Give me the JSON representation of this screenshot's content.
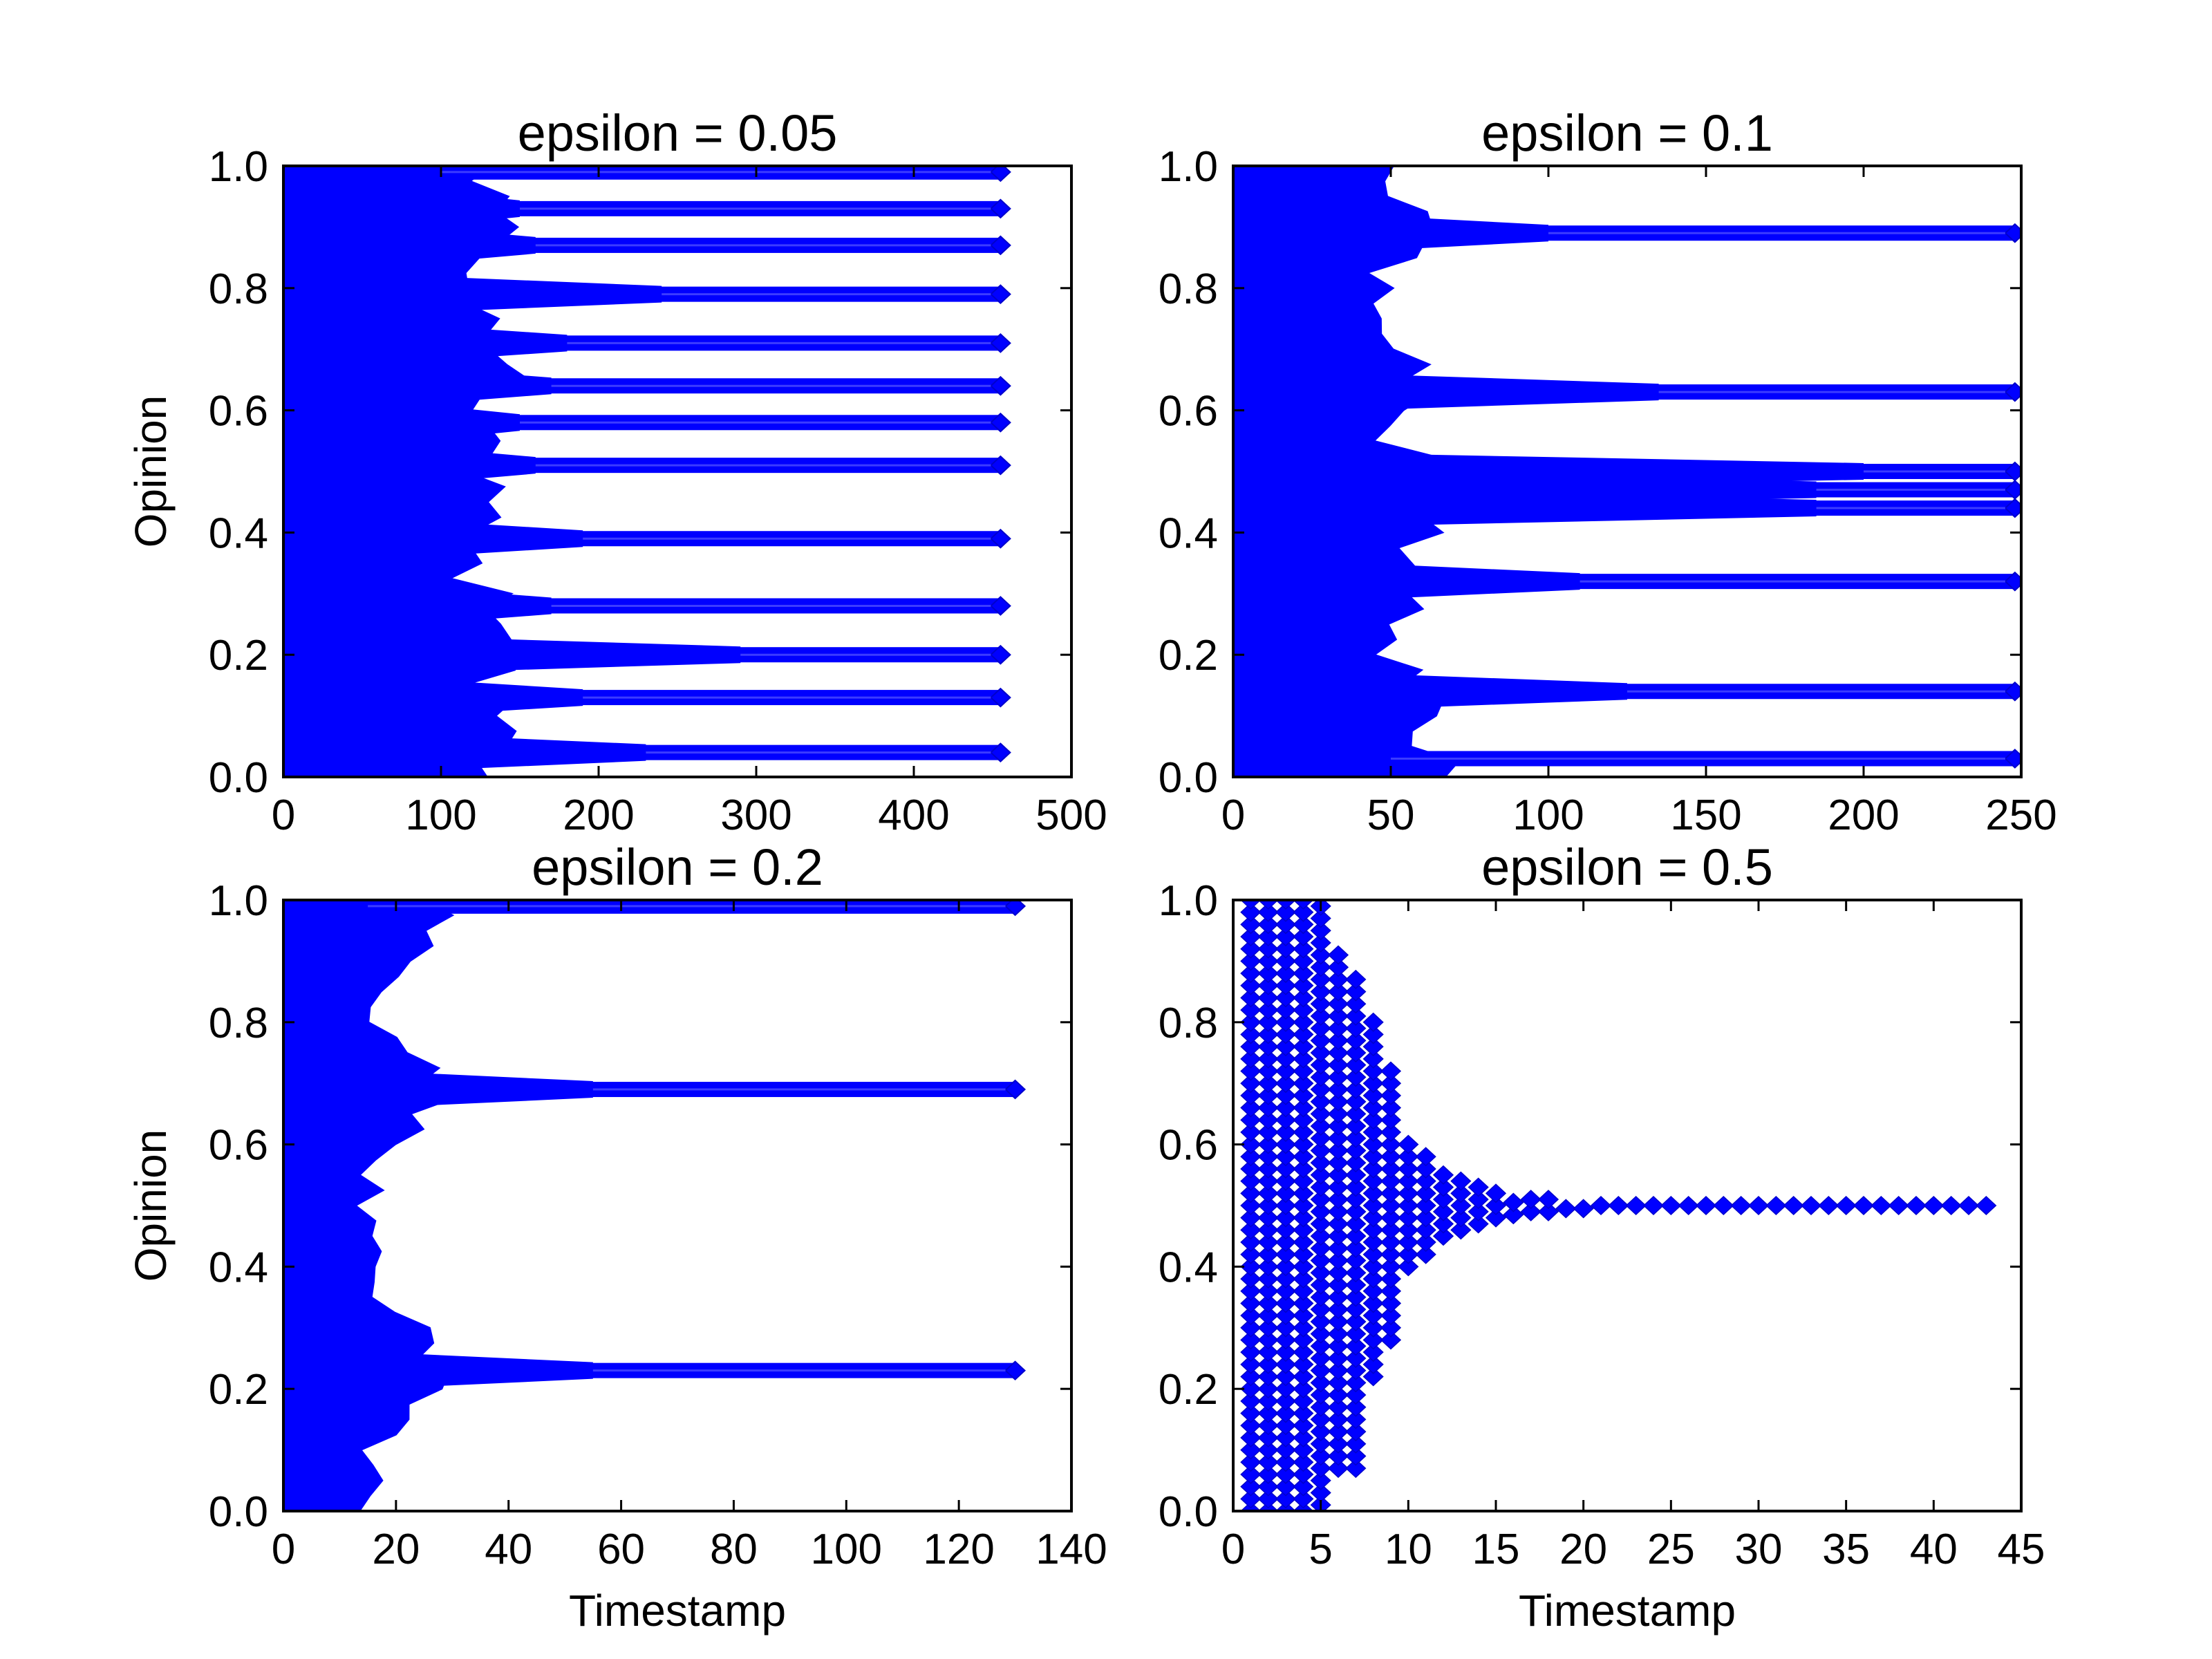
{
  "figure": {
    "background": "#ffffff",
    "marker_color": "#0000ff",
    "marker_edge_color": "#0000cc"
  },
  "chart_data": [
    {
      "type": "scatter",
      "title": "epsilon = 0.05",
      "xlabel": "",
      "ylabel": "Opinion",
      "xlim": [
        0,
        500
      ],
      "ylim": [
        0,
        1
      ],
      "xticks": [
        "0",
        "100",
        "200",
        "300",
        "400",
        "500"
      ],
      "yticks": [
        "0.0",
        "0.2",
        "0.4",
        "0.6",
        "0.8",
        "1.0"
      ],
      "final_x": 455,
      "initial_spread_end_x": 150,
      "clusters": [
        {
          "y": 0.04,
          "converge_x": 230
        },
        {
          "y": 0.13,
          "converge_x": 190
        },
        {
          "y": 0.2,
          "converge_x": 290
        },
        {
          "y": 0.28,
          "converge_x": 170
        },
        {
          "y": 0.39,
          "converge_x": 190
        },
        {
          "y": 0.51,
          "converge_x": 160
        },
        {
          "y": 0.58,
          "converge_x": 150
        },
        {
          "y": 0.64,
          "converge_x": 170
        },
        {
          "y": 0.71,
          "converge_x": 180
        },
        {
          "y": 0.79,
          "converge_x": 240
        },
        {
          "y": 0.87,
          "converge_x": 160
        },
        {
          "y": 0.93,
          "converge_x": 150
        },
        {
          "y": 0.99,
          "converge_x": 100
        }
      ]
    },
    {
      "type": "scatter",
      "title": "epsilon = 0.1",
      "xlabel": "",
      "ylabel": "",
      "xlim": [
        0,
        250
      ],
      "ylim": [
        0,
        1
      ],
      "xticks": [
        "0",
        "50",
        "100",
        "150",
        "200",
        "250"
      ],
      "yticks": [
        "0.0",
        "0.2",
        "0.4",
        "0.6",
        "0.8",
        "1.0"
      ],
      "final_x": 248,
      "initial_spread_end_x": 70,
      "clusters": [
        {
          "y": 0.03,
          "converge_x": 50
        },
        {
          "y": 0.14,
          "converge_x": 125
        },
        {
          "y": 0.32,
          "converge_x": 110
        },
        {
          "y": 0.44,
          "converge_x": 185
        },
        {
          "y": 0.47,
          "converge_x": 185
        },
        {
          "y": 0.5,
          "converge_x": 200
        },
        {
          "y": 0.63,
          "converge_x": 135
        },
        {
          "y": 0.89,
          "converge_x": 100
        }
      ]
    },
    {
      "type": "scatter",
      "title": "epsilon = 0.2",
      "xlabel": "Timestamp",
      "ylabel": "Opinion",
      "xlim": [
        0,
        140
      ],
      "ylim": [
        0,
        1
      ],
      "xticks": [
        "0",
        "20",
        "40",
        "60",
        "80",
        "100",
        "120",
        "140"
      ],
      "yticks": [
        "0.0",
        "0.2",
        "0.4",
        "0.6",
        "0.8",
        "1.0"
      ],
      "final_x": 130,
      "initial_spread_end_x": 30,
      "clusters": [
        {
          "y": 0.23,
          "converge_x": 55
        },
        {
          "y": 0.69,
          "converge_x": 55
        },
        {
          "y": 0.99,
          "converge_x": 15
        }
      ]
    },
    {
      "type": "scatter",
      "title": "epsilon = 0.5",
      "xlabel": "Timestamp",
      "ylabel": "",
      "xlim": [
        0,
        45
      ],
      "ylim": [
        0,
        1
      ],
      "xticks": [
        "0",
        "5",
        "10",
        "15",
        "20",
        "25",
        "30",
        "35",
        "40",
        "45"
      ],
      "yticks": [
        "0.0",
        "0.2",
        "0.4",
        "0.6",
        "0.8",
        "1.0"
      ],
      "final_x": 43,
      "converge_value": 0.5,
      "column_ranges": [
        {
          "x": 1,
          "ymin": 0.0,
          "ymax": 1.0
        },
        {
          "x": 2,
          "ymin": 0.0,
          "ymax": 1.0
        },
        {
          "x": 3,
          "ymin": 0.0,
          "ymax": 1.0
        },
        {
          "x": 4,
          "ymin": 0.0,
          "ymax": 1.0
        },
        {
          "x": 5,
          "ymin": 0.01,
          "ymax": 1.0
        },
        {
          "x": 6,
          "ymin": 0.07,
          "ymax": 0.92
        },
        {
          "x": 7,
          "ymin": 0.07,
          "ymax": 0.88
        },
        {
          "x": 8,
          "ymin": 0.22,
          "ymax": 0.81
        },
        {
          "x": 9,
          "ymin": 0.28,
          "ymax": 0.72
        },
        {
          "x": 10,
          "ymin": 0.4,
          "ymax": 0.61
        },
        {
          "x": 11,
          "ymin": 0.42,
          "ymax": 0.59
        },
        {
          "x": 12,
          "ymin": 0.45,
          "ymax": 0.56
        },
        {
          "x": 13,
          "ymin": 0.46,
          "ymax": 0.55
        },
        {
          "x": 14,
          "ymin": 0.47,
          "ymax": 0.54
        },
        {
          "x": 15,
          "ymin": 0.48,
          "ymax": 0.53
        },
        {
          "x": 16,
          "ymin": 0.485,
          "ymax": 0.52
        },
        {
          "x": 17,
          "ymin": 0.49,
          "ymax": 0.51
        },
        {
          "x": 18,
          "ymin": 0.49,
          "ymax": 0.51
        },
        {
          "x": 19,
          "ymin": 0.495,
          "ymax": 0.505
        },
        {
          "x": 20,
          "ymin": 0.495,
          "ymax": 0.505
        }
      ]
    }
  ]
}
